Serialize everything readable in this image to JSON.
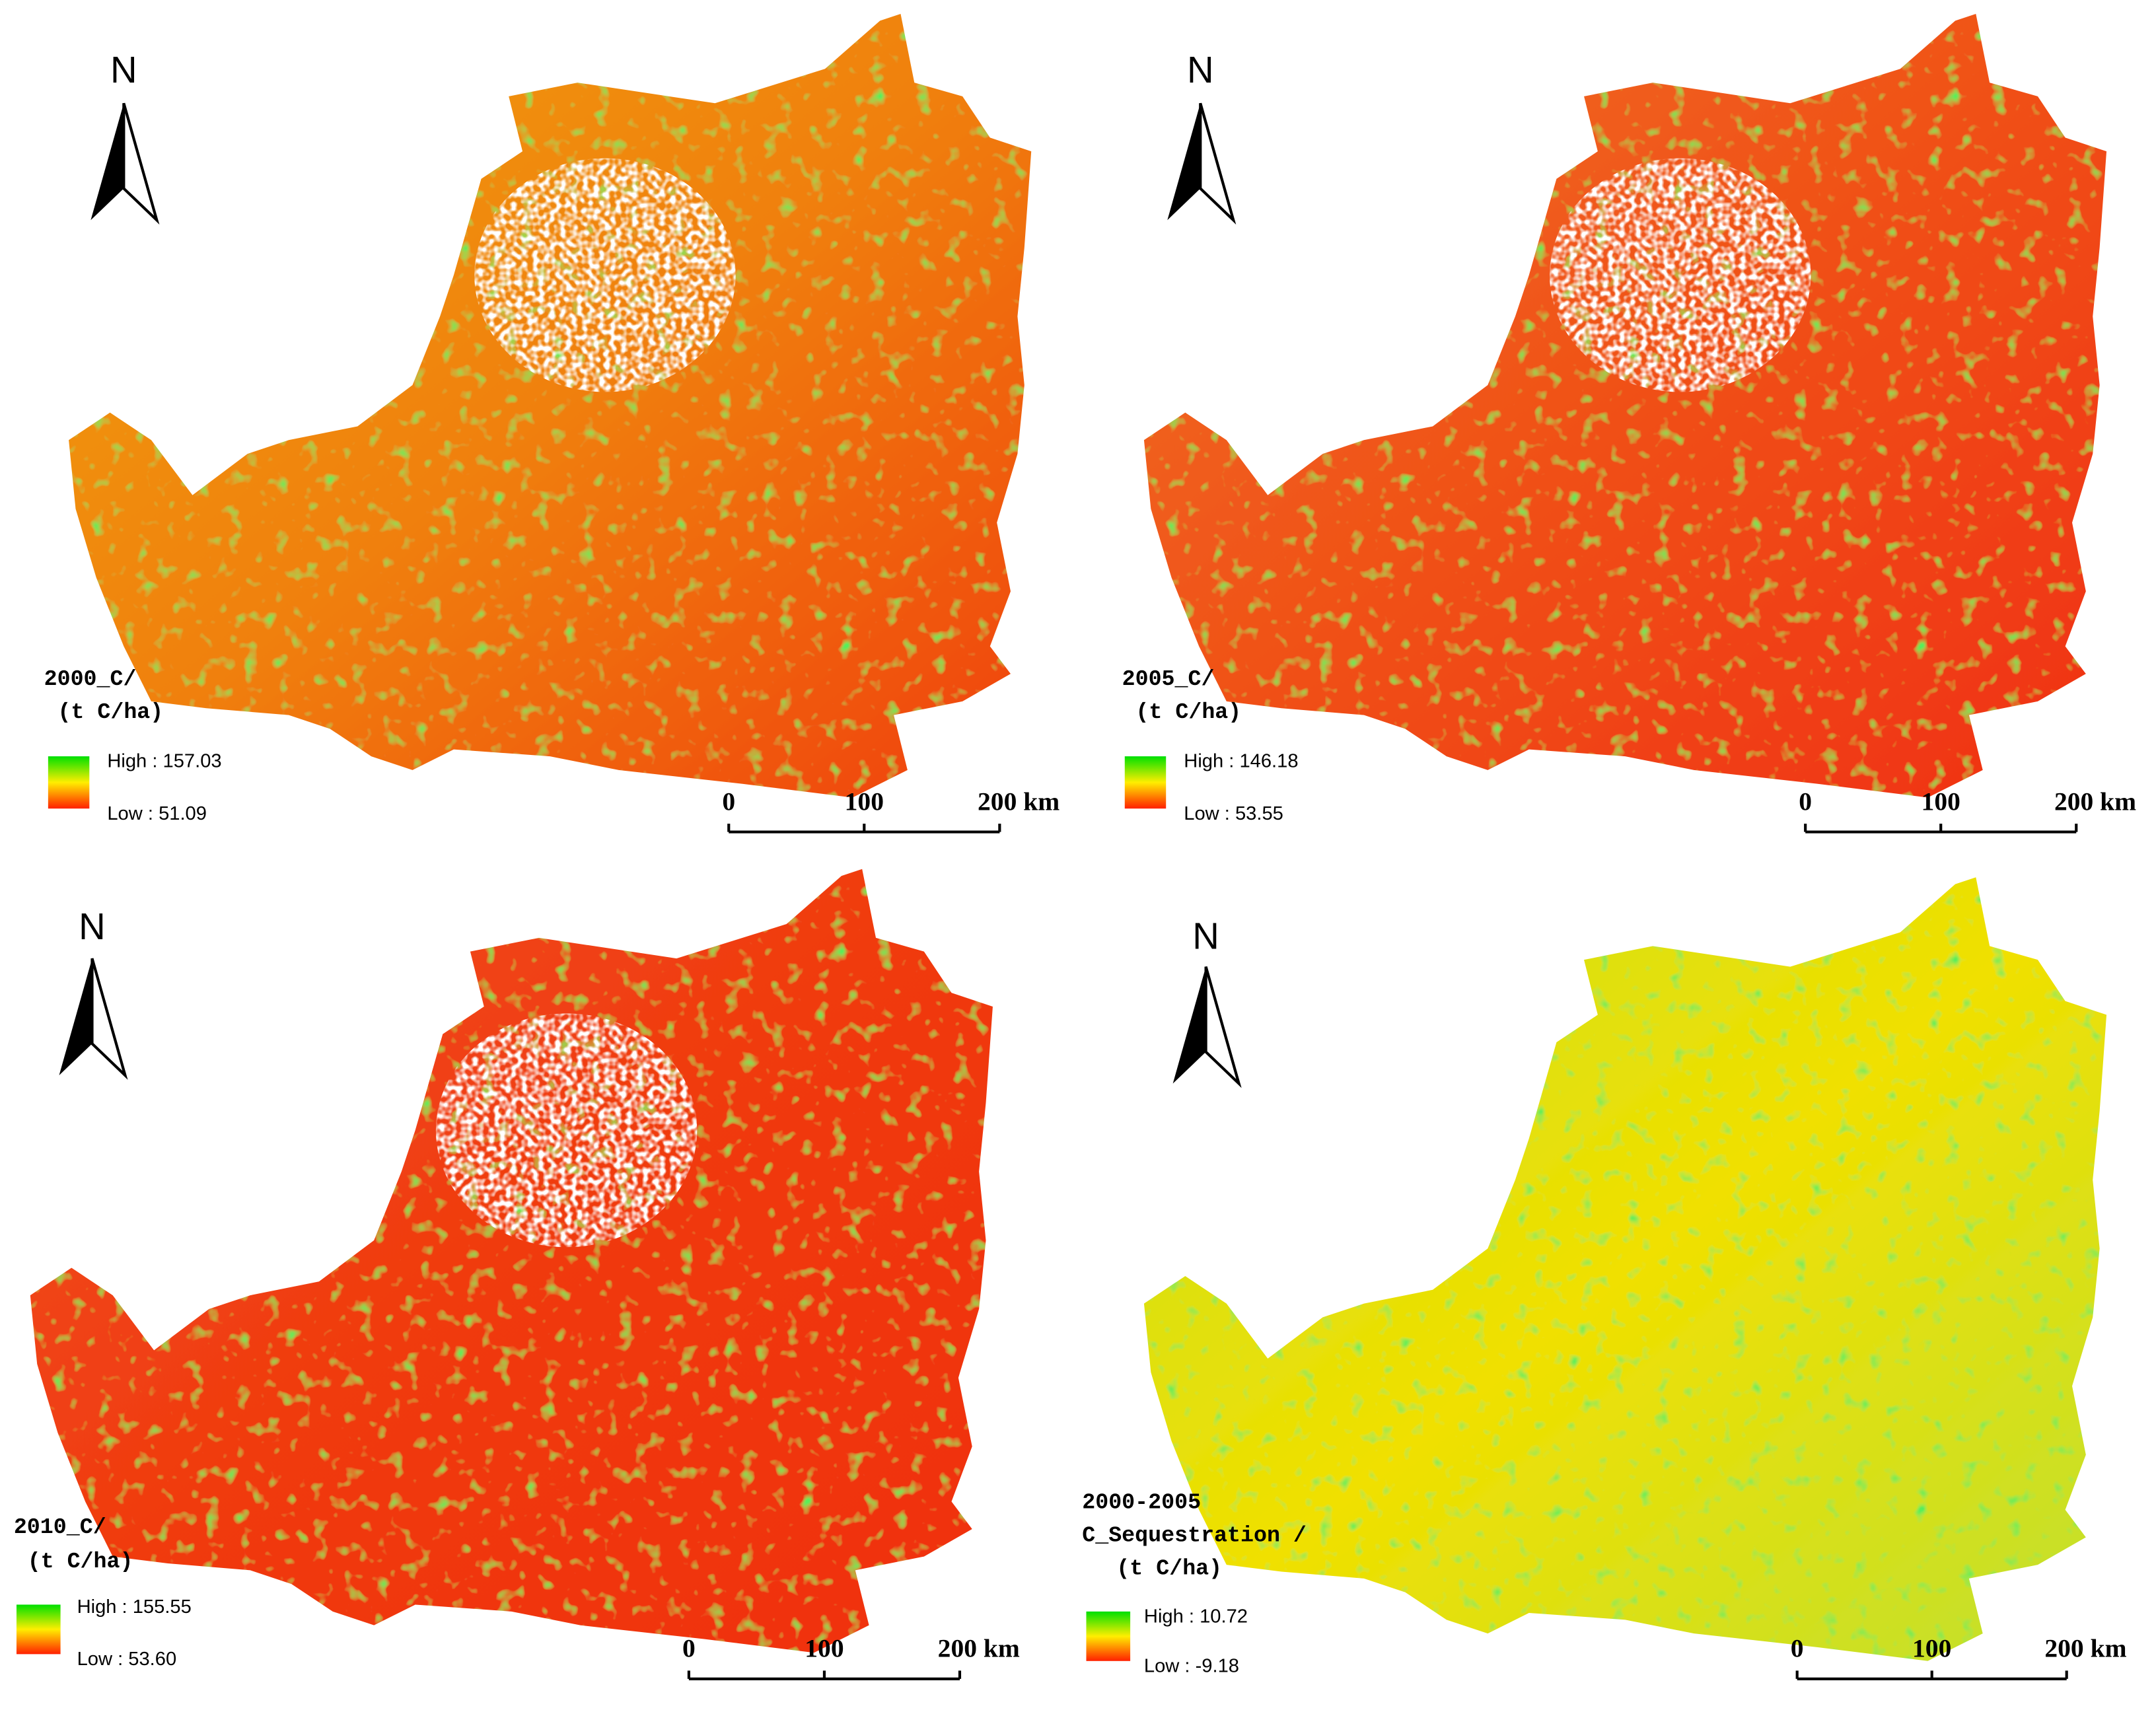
{
  "panels": [
    {
      "north": "N",
      "legend": {
        "title": [
          "2000_C/",
          "(t C/ha)"
        ],
        "high": "High : 157.03",
        "low": "Low : 51.09"
      },
      "scale": [
        "0",
        "100",
        "200 km"
      ]
    },
    {
      "north": "N",
      "legend": {
        "title": [
          "2005_C/",
          "(t C/ha)"
        ],
        "high": "High : 146.18",
        "low": "Low : 53.55"
      },
      "scale": [
        "0",
        "100",
        "200 km"
      ]
    },
    {
      "north": "N",
      "legend": {
        "title": [
          "2010_C/",
          "(t C/ha)"
        ],
        "high": "High : 155.55",
        "low": "Low : 53.60"
      },
      "scale": [
        "0",
        "100",
        "200 km"
      ]
    },
    {
      "north": "N",
      "legend": {
        "title": [
          "2000-2005",
          "C_Sequestration /",
          "(t C/ha)"
        ],
        "high": "High : 10.72",
        "low": "Low : -9.18"
      },
      "scale": [
        "0",
        "100",
        "200 km"
      ]
    }
  ]
}
